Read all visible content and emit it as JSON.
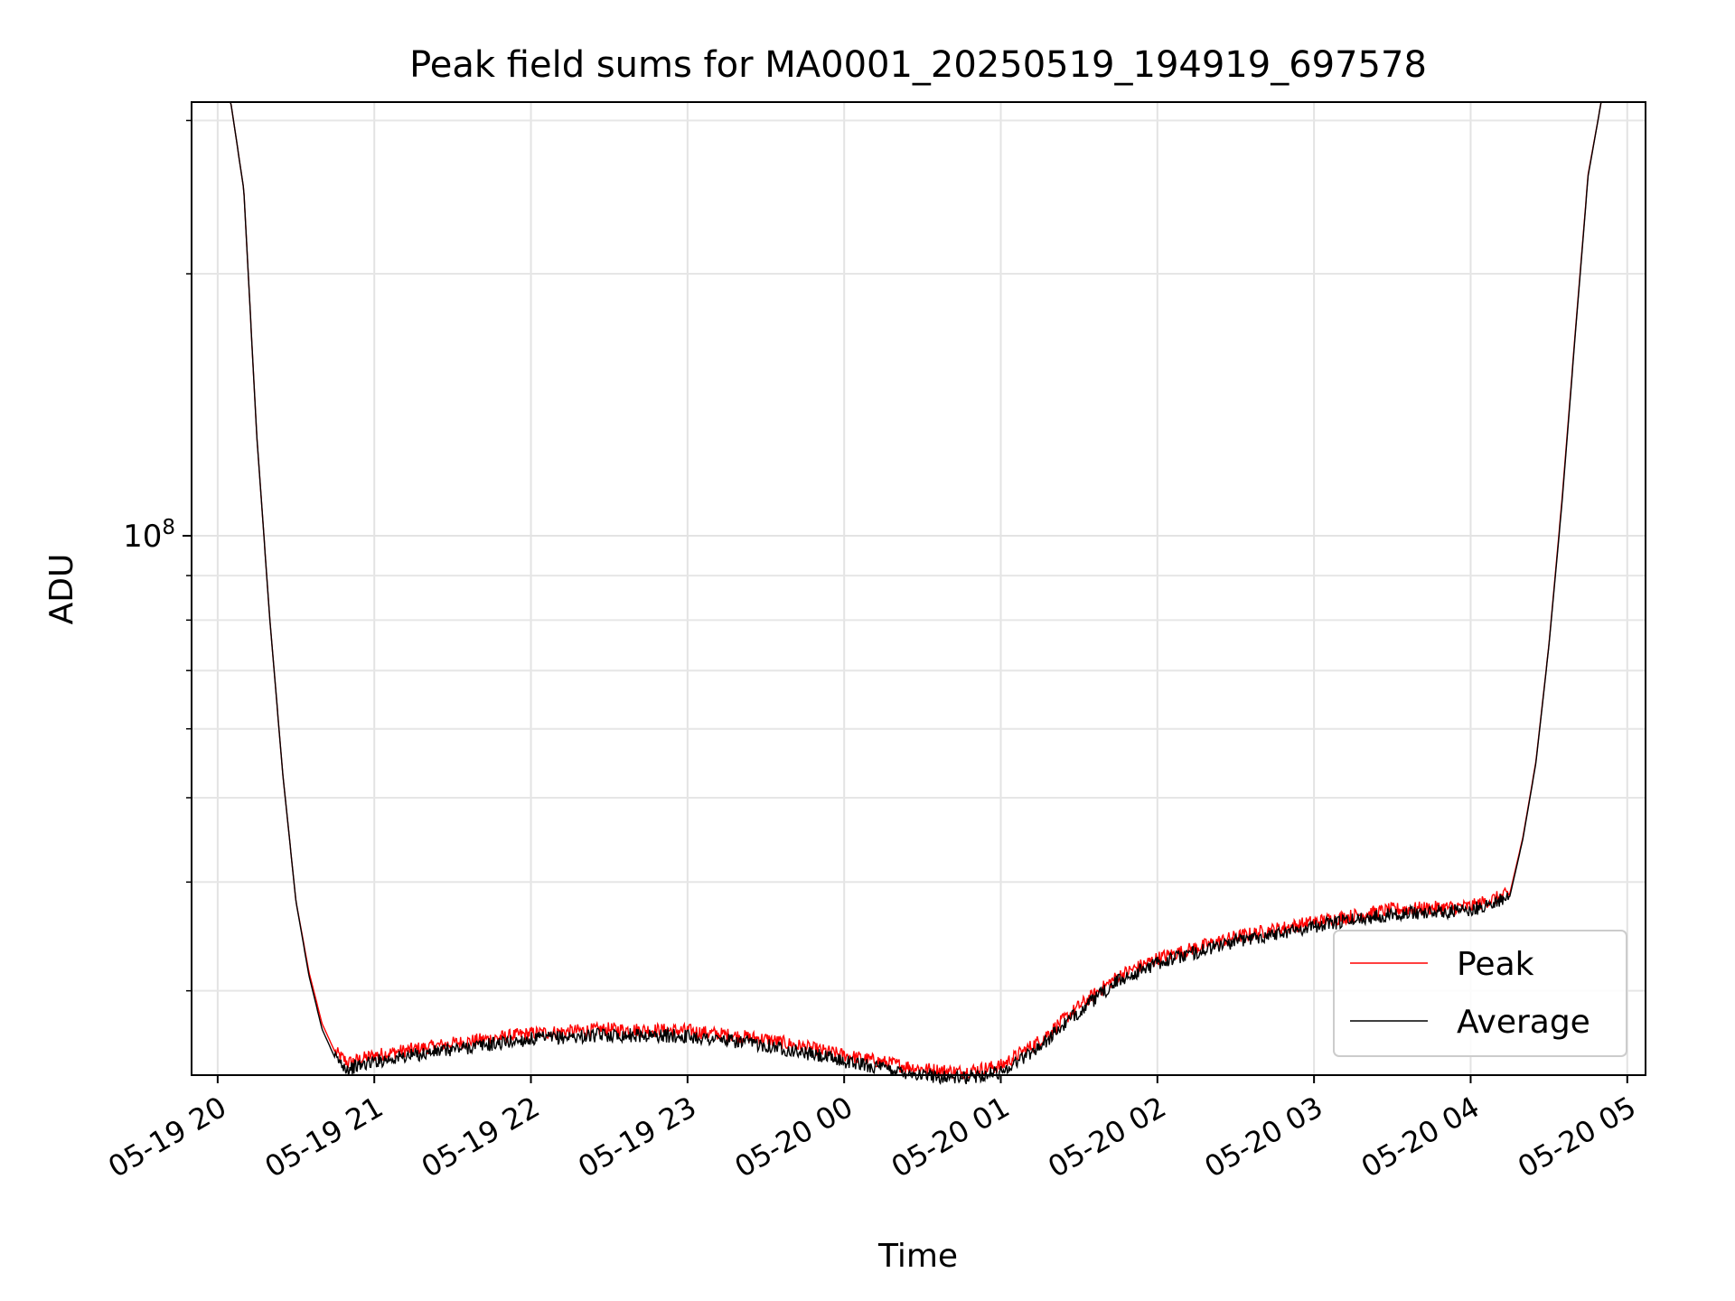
{
  "chart_data": {
    "type": "line",
    "title": "Peak field sums for MA0001_20250519_194919_697578",
    "xlabel": "Time",
    "ylabel": "ADU",
    "yscale": "log",
    "grid": true,
    "legend_position": "lower-right",
    "xlim": [
      "2025-05-19 19:50",
      "2025-05-20 05:07"
    ],
    "ylim": [
      24000000,
      315000000
    ],
    "x_ticks": [
      "05-19 20",
      "05-19 21",
      "05-19 22",
      "05-19 23",
      "05-20 00",
      "05-20 01",
      "05-20 02",
      "05-20 03",
      "05-20 04",
      "05-20 05"
    ],
    "y_ticks": [
      {
        "value": 100000000,
        "base": "10",
        "exp": "8"
      }
    ],
    "x": [
      "2025-05-19 19:50",
      "2025-05-19 20:05",
      "2025-05-19 20:10",
      "2025-05-19 20:15",
      "2025-05-19 20:20",
      "2025-05-19 20:25",
      "2025-05-19 20:30",
      "2025-05-19 20:35",
      "2025-05-19 20:40",
      "2025-05-19 20:45",
      "2025-05-19 20:50",
      "2025-05-19 21:00",
      "2025-05-19 21:30",
      "2025-05-19 22:00",
      "2025-05-19 22:30",
      "2025-05-19 23:00",
      "2025-05-19 23:30",
      "2025-05-20 00:00",
      "2025-05-20 00:30",
      "2025-05-20 00:45",
      "2025-05-20 01:00",
      "2025-05-20 01:15",
      "2025-05-20 01:30",
      "2025-05-20 01:45",
      "2025-05-20 02:00",
      "2025-05-20 02:30",
      "2025-05-20 03:00",
      "2025-05-20 03:30",
      "2025-05-20 04:00",
      "2025-05-20 04:15",
      "2025-05-20 04:20",
      "2025-05-20 04:25",
      "2025-05-20 04:30",
      "2025-05-20 04:35",
      "2025-05-20 04:40",
      "2025-05-20 04:45",
      "2025-05-20 04:50",
      "2025-05-20 05:07"
    ],
    "series": [
      {
        "name": "Peak",
        "color": "#ff0000",
        "values": [
          315000000,
          315000000,
          250000000,
          130000000,
          80000000,
          53000000,
          38000000,
          31500000,
          27500000,
          25500000,
          24800000,
          25300000,
          26100000,
          26800000,
          27100000,
          27000000,
          26400000,
          25300000,
          24400000,
          24200000,
          24600000,
          26300000,
          28800000,
          31200000,
          32700000,
          34600000,
          36000000,
          37200000,
          37500000,
          38800000,
          45000000,
          55000000,
          75000000,
          110000000,
          170000000,
          260000000,
          315000000,
          315000000
        ]
      },
      {
        "name": "Average",
        "color": "#000000",
        "values": [
          315000000,
          315000000,
          250000000,
          130000000,
          80000000,
          53000000,
          38000000,
          31200000,
          27100000,
          25100000,
          24400000,
          24900000,
          25700000,
          26400000,
          26700000,
          26600000,
          26000000,
          24900000,
          24000000,
          23800000,
          24200000,
          25900000,
          28400000,
          30800000,
          32300000,
          34200000,
          35600000,
          36800000,
          37100000,
          38500000,
          44800000,
          54800000,
          74800000,
          109000000,
          169000000,
          259000000,
          315000000,
          315000000
        ]
      }
    ]
  }
}
